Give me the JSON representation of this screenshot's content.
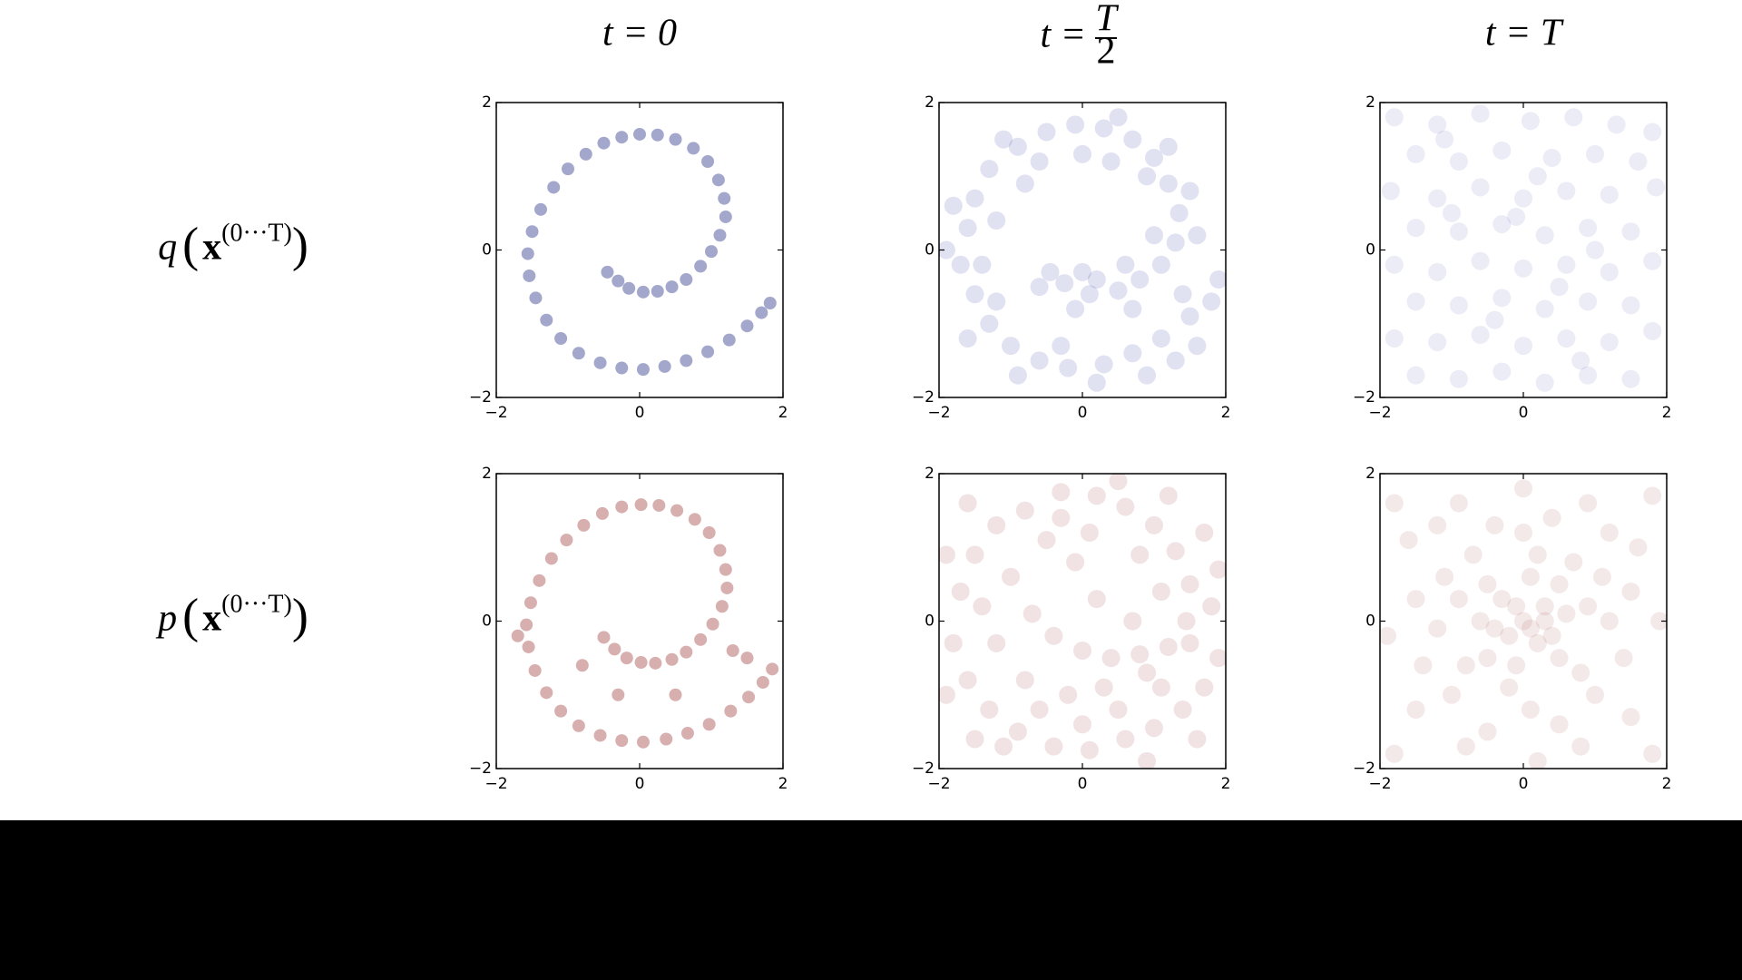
{
  "column_titles": [
    {
      "text": "t = 0"
    },
    {
      "text": "t = ",
      "numerator": "T",
      "denominator": "2"
    },
    {
      "text": "t = T"
    }
  ],
  "row_labels": [
    [
      "q",
      "(",
      "x",
      "(0···T)",
      ")"
    ],
    [
      "p",
      "(",
      "x",
      "(0···T)",
      ")"
    ]
  ],
  "chart_data": [
    {
      "type": "scatter",
      "color": "#1a237e",
      "alpha": 0.4,
      "marker_size": 7,
      "xlim": [
        -2,
        2
      ],
      "ylim": [
        -2,
        2
      ],
      "xticks": [
        {
          "value": -2,
          "label": "−2"
        },
        0,
        2
      ],
      "yticks": [
        {
          "value": -2,
          "label": "−2"
        },
        0,
        2
      ],
      "x": [
        -0.45,
        -0.3,
        -0.15,
        0.05,
        0.25,
        0.45,
        0.65,
        0.85,
        1.0,
        1.12,
        1.2,
        1.18,
        1.1,
        0.95,
        0.75,
        0.5,
        0.25,
        0,
        -0.25,
        -0.5,
        -0.75,
        -1.0,
        -1.2,
        -1.38,
        -1.5,
        -1.56,
        -1.54,
        -1.45,
        -1.3,
        -1.1,
        -0.85,
        -0.55,
        -0.25,
        0.05,
        0.35,
        0.65,
        0.95,
        1.25,
        1.5,
        1.7,
        1.82
      ],
      "y": [
        -0.3,
        -0.42,
        -0.52,
        -0.57,
        -0.56,
        -0.5,
        -0.4,
        -0.22,
        -0.02,
        0.2,
        0.45,
        0.7,
        0.95,
        1.2,
        1.38,
        1.5,
        1.56,
        1.57,
        1.53,
        1.45,
        1.3,
        1.1,
        0.85,
        0.55,
        0.25,
        -0.05,
        -0.35,
        -0.65,
        -0.95,
        -1.2,
        -1.4,
        -1.53,
        -1.6,
        -1.62,
        -1.58,
        -1.5,
        -1.38,
        -1.22,
        -1.03,
        -0.85,
        -0.72
      ]
    },
    {
      "type": "scatter",
      "color": "#3f4aa8",
      "alpha": 0.16,
      "marker_size": 10,
      "xlim": [
        -2,
        2
      ],
      "ylim": [
        -2,
        2
      ],
      "xticks": [
        {
          "value": -2,
          "label": "−2"
        },
        0,
        2
      ],
      "yticks": [
        {
          "value": -2,
          "label": "−2"
        },
        0,
        2
      ],
      "x": [
        -1.6,
        -1.5,
        -1.3,
        -0.9,
        -0.5,
        -0.1,
        0.3,
        0.7,
        1.0,
        1.2,
        1.35,
        1.3,
        1.1,
        0.8,
        0.5,
        0.1,
        -0.25,
        -0.45,
        -1.7,
        -1.5,
        -1.3,
        -1.0,
        -0.6,
        -0.2,
        0.3,
        0.7,
        1.1,
        1.5,
        1.8,
        1.9,
        -1.8,
        -1.2,
        -1.1,
        -0.6,
        0.0,
        0.5,
        0.9,
        1.5,
        1.6,
        1.0,
        0.6,
        0.2,
        -0.1,
        -0.6,
        -1.9,
        -1.4,
        -1.6,
        -0.9,
        -0.3,
        0.2,
        0.9,
        1.3,
        1.6,
        1.4,
        -0.8,
        0.4,
        1.2,
        -1.2,
        0.0,
        0.7
      ],
      "y": [
        0.3,
        0.7,
        1.1,
        1.4,
        1.6,
        1.7,
        1.65,
        1.5,
        1.25,
        0.9,
        0.5,
        0.1,
        -0.2,
        -0.4,
        -0.55,
        -0.6,
        -0.45,
        -0.3,
        -0.2,
        -0.6,
        -1.0,
        -1.3,
        -1.5,
        -1.6,
        -1.55,
        -1.4,
        -1.2,
        -0.9,
        -0.7,
        -0.4,
        0.6,
        0.4,
        1.5,
        1.2,
        1.3,
        1.8,
        1.0,
        0.8,
        0.2,
        0.2,
        -0.2,
        -0.4,
        -0.8,
        -0.5,
        0.0,
        -0.2,
        -1.2,
        -1.7,
        -1.3,
        -1.8,
        -1.7,
        -1.5,
        -1.3,
        -0.6,
        0.9,
        1.2,
        1.4,
        -0.7,
        -0.3,
        -0.8
      ]
    },
    {
      "type": "scatter",
      "color": "#5a63b8",
      "alpha": 0.12,
      "marker_size": 10,
      "xlim": [
        -2,
        2
      ],
      "ylim": [
        -2,
        2
      ],
      "xticks": [
        {
          "value": -2,
          "label": "−2"
        },
        0,
        2
      ],
      "yticks": [
        {
          "value": -2,
          "label": "−2"
        },
        0,
        2
      ],
      "x": [
        -1.8,
        -1.2,
        -0.6,
        0.1,
        0.7,
        1.3,
        1.8,
        -1.5,
        -0.9,
        -0.3,
        0.4,
        1.0,
        1.6,
        -1.85,
        -1.2,
        -0.6,
        0.0,
        0.6,
        1.2,
        1.85,
        -1.5,
        -0.9,
        -0.3,
        0.3,
        0.9,
        1.5,
        -1.8,
        -1.2,
        -0.6,
        0.0,
        0.6,
        1.2,
        1.8,
        -1.5,
        -0.9,
        -0.3,
        0.3,
        0.9,
        1.5,
        -1.8,
        -1.2,
        -0.6,
        0.0,
        0.6,
        1.2,
        1.8,
        -1.5,
        -0.9,
        -0.3,
        0.3,
        0.9,
        1.5,
        0.2,
        -0.1,
        0.5,
        -0.4,
        1.0,
        -1.0,
        0.8,
        -1.1
      ],
      "y": [
        1.8,
        1.7,
        1.85,
        1.75,
        1.8,
        1.7,
        1.6,
        1.3,
        1.2,
        1.35,
        1.25,
        1.3,
        1.2,
        0.8,
        0.7,
        0.85,
        0.7,
        0.8,
        0.75,
        0.85,
        0.3,
        0.25,
        0.35,
        0.2,
        0.3,
        0.25,
        -0.2,
        -0.3,
        -0.15,
        -0.25,
        -0.2,
        -0.3,
        -0.15,
        -0.7,
        -0.75,
        -0.65,
        -0.8,
        -0.7,
        -0.75,
        -1.2,
        -1.25,
        -1.15,
        -1.3,
        -1.2,
        -1.25,
        -1.1,
        -1.7,
        -1.75,
        -1.65,
        -1.8,
        -1.7,
        -1.75,
        1.0,
        0.45,
        -0.5,
        -0.95,
        0.0,
        0.5,
        -1.5,
        1.5
      ]
    },
    {
      "type": "scatter",
      "color": "#8b1a1a",
      "alpha": 0.35,
      "marker_size": 7,
      "xlim": [
        -2,
        2
      ],
      "ylim": [
        -2,
        2
      ],
      "xticks": [
        {
          "value": -2,
          "label": "−2"
        },
        0,
        2
      ],
      "yticks": [
        {
          "value": -2,
          "label": "−2"
        },
        0,
        2
      ],
      "x": [
        -0.5,
        -0.35,
        -0.18,
        0.02,
        0.22,
        0.45,
        0.65,
        0.85,
        1.02,
        1.15,
        1.22,
        1.2,
        1.12,
        0.97,
        0.77,
        0.52,
        0.27,
        0.02,
        -0.25,
        -0.52,
        -0.78,
        -1.02,
        -1.23,
        -1.4,
        -1.52,
        -1.58,
        -1.55,
        -1.46,
        -1.3,
        -1.1,
        -0.85,
        -0.55,
        -0.25,
        0.05,
        0.37,
        0.67,
        0.97,
        1.27,
        1.52,
        1.72,
        1.85,
        -0.8,
        0.5,
        1.3,
        -0.3,
        1.5,
        -1.7
      ],
      "y": [
        -0.22,
        -0.38,
        -0.5,
        -0.56,
        -0.57,
        -0.52,
        -0.42,
        -0.25,
        -0.04,
        0.2,
        0.45,
        0.7,
        0.96,
        1.2,
        1.38,
        1.5,
        1.57,
        1.58,
        1.55,
        1.46,
        1.3,
        1.1,
        0.85,
        0.55,
        0.25,
        -0.05,
        -0.35,
        -0.67,
        -0.97,
        -1.22,
        -1.42,
        -1.55,
        -1.62,
        -1.64,
        -1.6,
        -1.52,
        -1.4,
        -1.22,
        -1.03,
        -0.83,
        -0.65,
        -0.6,
        -1.0,
        -0.4,
        -1.0,
        -0.5,
        -0.2
      ]
    },
    {
      "type": "scatter",
      "color": "#9c3a3a",
      "alpha": 0.14,
      "marker_size": 10,
      "xlim": [
        -2,
        2
      ],
      "ylim": [
        -2,
        2
      ],
      "xticks": [
        {
          "value": -2,
          "label": "−2"
        },
        0,
        2
      ],
      "yticks": [
        {
          "value": -2,
          "label": "−2"
        },
        0,
        2
      ],
      "x": [
        -1.7,
        -1.5,
        -1.2,
        -0.8,
        -0.3,
        0.2,
        0.6,
        1.0,
        1.3,
        1.5,
        1.45,
        1.2,
        0.8,
        0.4,
        0.0,
        -0.4,
        -1.8,
        -1.6,
        -1.3,
        -0.9,
        -0.4,
        0.1,
        0.6,
        1.0,
        1.4,
        1.7,
        1.9,
        1.8,
        -1.9,
        -1.0,
        -0.5,
        0.1,
        0.8,
        1.7,
        1.1,
        0.7,
        0.3,
        -0.2,
        -0.8,
        -1.2,
        -1.4,
        -1.1,
        -0.6,
        0.5,
        1.1,
        1.6,
        0.9,
        -0.3,
        0.5,
        -1.6,
        0.2,
        -0.7,
        1.5,
        0.0,
        -1.5,
        1.2,
        -0.1,
        0.9,
        -1.9,
        1.9
      ],
      "y": [
        0.4,
        0.9,
        1.3,
        1.5,
        1.75,
        1.7,
        1.55,
        1.3,
        0.95,
        0.5,
        0.0,
        -0.35,
        -0.45,
        -0.5,
        -0.4,
        -0.2,
        -0.3,
        -0.8,
        -1.2,
        -1.5,
        -1.7,
        -1.75,
        -1.6,
        -1.45,
        -1.2,
        -0.9,
        -0.5,
        0.2,
        0.9,
        0.6,
        1.1,
        1.2,
        0.9,
        1.2,
        0.4,
        0.0,
        -0.9,
        -1.0,
        -0.8,
        -0.3,
        0.2,
        -1.7,
        -1.2,
        -1.2,
        -0.9,
        -1.6,
        -1.9,
        1.4,
        1.9,
        1.6,
        0.3,
        0.1,
        -0.3,
        -1.4,
        -1.6,
        1.7,
        0.8,
        -0.7,
        -1.0,
        0.7
      ]
    },
    {
      "type": "scatter",
      "color": "#a54848",
      "alpha": 0.12,
      "marker_size": 10,
      "xlim": [
        -2,
        2
      ],
      "ylim": [
        -2,
        2
      ],
      "xticks": [
        {
          "value": -2,
          "label": "−2"
        },
        0,
        2
      ],
      "yticks": [
        {
          "value": -2,
          "label": "−2"
        },
        0,
        2
      ],
      "x": [
        0,
        0.3,
        -0.3,
        0.2,
        -0.2,
        0.6,
        -0.6,
        0.1,
        -0.1,
        0.5,
        -0.5,
        0.5,
        -0.5,
        0.9,
        -0.9,
        0.2,
        -0.2,
        0.8,
        -0.8,
        0.7,
        -0.7,
        1.2,
        -1.2,
        0.0,
        0.1,
        1.1,
        -1.1,
        1.0,
        -1.0,
        0.4,
        -0.4,
        0.5,
        -0.5,
        1.5,
        -1.5,
        1.4,
        -1.4,
        1.6,
        -1.6,
        1.5,
        -1.5,
        0.9,
        -0.9,
        0.8,
        -0.8,
        1.9,
        -1.9,
        0.0,
        0.2,
        1.8,
        -1.8,
        1.8,
        -1.8,
        0.3,
        -0.1,
        0.1,
        0.4,
        -0.4,
        1.2,
        -1.2
      ],
      "y": [
        0,
        0.2,
        0.3,
        -0.3,
        -0.2,
        0.1,
        0.0,
        0.6,
        -0.6,
        0.5,
        0.5,
        -0.5,
        -0.5,
        0.2,
        0.3,
        0.9,
        -0.9,
        -0.7,
        -0.6,
        0.8,
        0.9,
        0.0,
        -0.1,
        1.2,
        -1.2,
        0.6,
        0.6,
        -1.0,
        -1.0,
        1.4,
        1.3,
        -1.4,
        -1.5,
        0.4,
        0.3,
        -0.5,
        -0.6,
        1.0,
        1.1,
        -1.3,
        -1.2,
        1.6,
        1.6,
        -1.7,
        -1.7,
        0.0,
        -0.2,
        1.8,
        -1.9,
        1.7,
        1.6,
        -1.8,
        -1.8,
        0.0,
        0.2,
        -0.1,
        -0.2,
        -0.1,
        1.2,
        1.3
      ]
    }
  ]
}
